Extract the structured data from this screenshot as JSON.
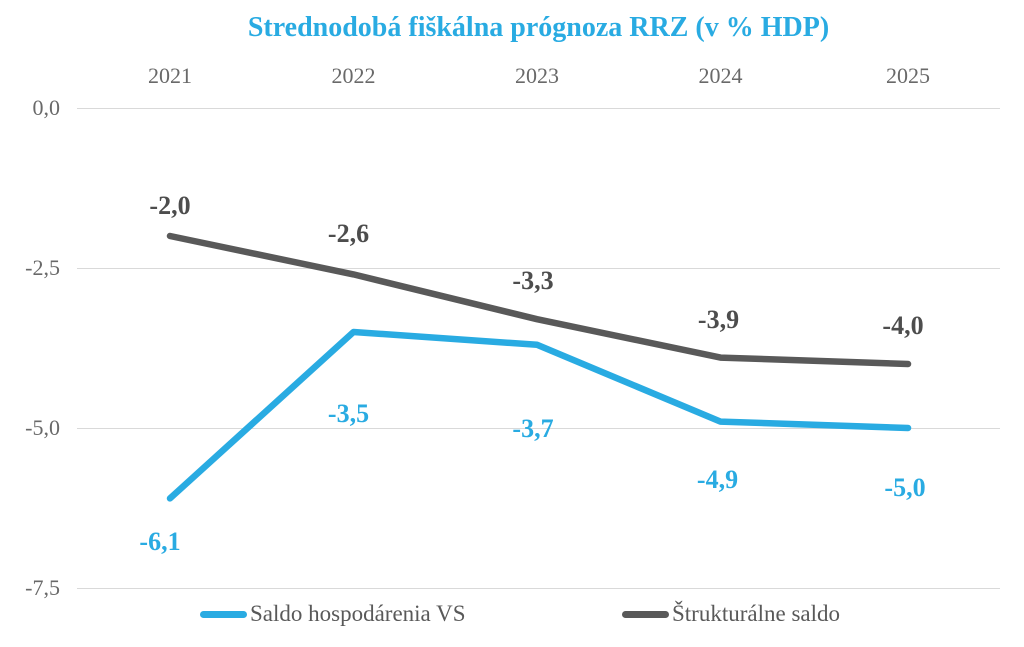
{
  "chart_data": {
    "type": "line",
    "title": "Strednodobá fiškálna prógnoza RRZ (v % HDP)",
    "title_color": "#29abe2",
    "categories": [
      "2021",
      "2022",
      "2023",
      "2024",
      "2025"
    ],
    "x_axis_position": "top",
    "y_ticks": [
      {
        "label": "0,0",
        "value": 0
      },
      {
        "label": "-2,5",
        "value": -2.5
      },
      {
        "label": "-5,0",
        "value": -5
      },
      {
        "label": "-7,5",
        "value": -7.5
      }
    ],
    "ylim": [
      -7.5,
      0
    ],
    "grid": "horizontal",
    "gridline_color": "#d9d9d9",
    "axis_text_color": "#696969",
    "legend_position": "bottom",
    "legend_text_color": "#595959",
    "series": [
      {
        "name": "Saldo hospodárenia VS",
        "color": "#29abe2",
        "label_color": "#29abe2",
        "values": [
          -6.1,
          -3.5,
          -3.7,
          -4.9,
          -5.0
        ],
        "point_labels": [
          "-6,1",
          "-3,5",
          "-3,7",
          "-4,9",
          "-5,0"
        ]
      },
      {
        "name": "Štrukturálne saldo",
        "color": "#595959",
        "label_color": "#4d4d4d",
        "values": [
          -2.0,
          -2.6,
          -3.3,
          -3.9,
          -4.0
        ],
        "point_labels": [
          "-2,0",
          "-2,6",
          "-3,3",
          "-3,9",
          "-4,0"
        ]
      }
    ]
  }
}
